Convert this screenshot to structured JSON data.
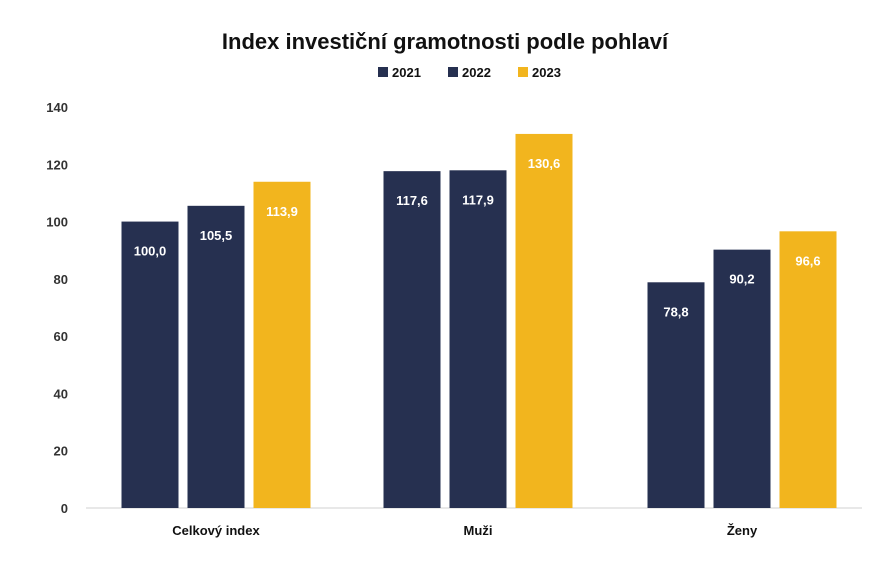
{
  "chart_data": {
    "type": "bar",
    "title": "Index investiční gramotnosti podle pohlaví",
    "categories": [
      "Celkový index",
      "Muži",
      "Ženy"
    ],
    "series": [
      {
        "name": "2021",
        "values": [
          100.0,
          117.6,
          78.8
        ],
        "labels": [
          "100,0",
          "117,6",
          "78,8"
        ],
        "color": "#263050"
      },
      {
        "name": "2022",
        "values": [
          105.5,
          117.9,
          90.2
        ],
        "labels": [
          "105,5",
          "117,9",
          "90,2"
        ],
        "color": "#263050"
      },
      {
        "name": "2023",
        "values": [
          113.9,
          130.6,
          96.6
        ],
        "labels": [
          "113,9",
          "130,6",
          "96,6"
        ],
        "color": "#F2B51E"
      }
    ],
    "y_ticks": [
      "0",
      "20",
      "40",
      "60",
      "80",
      "100",
      "120",
      "140"
    ],
    "ylim": [
      0,
      140
    ],
    "legend_position": "top-center",
    "grid": false
  }
}
